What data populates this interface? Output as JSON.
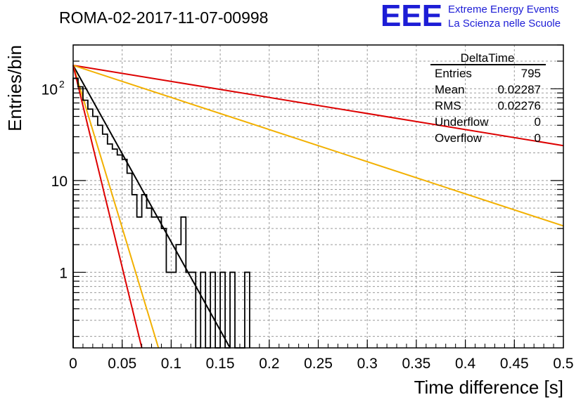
{
  "chart_data": {
    "type": "histogram",
    "title": "ROMA-02-2017-11-07-00998",
    "xlabel": "Time difference [s]",
    "ylabel": "Entries/bin",
    "xlim": [
      0,
      0.5
    ],
    "ylim": [
      0.15,
      300
    ],
    "y_scale": "log",
    "grid": true,
    "x_ticks": [
      "0",
      "0.05",
      "0.1",
      "0.15",
      "0.2",
      "0.25",
      "0.3",
      "0.35",
      "0.4",
      "0.45",
      "0.5"
    ],
    "y_ticks": [
      {
        "value": 1,
        "label": "1"
      },
      {
        "value": 10,
        "label": "10"
      },
      {
        "value": 100,
        "label": "10",
        "exp": "2"
      }
    ],
    "histogram": {
      "bin_width": 0.005,
      "values": [
        130,
        105,
        75,
        60,
        50,
        40,
        32,
        25,
        22,
        19,
        17,
        12,
        7,
        4,
        7,
        5,
        4,
        4,
        3,
        1,
        1,
        2,
        4,
        1,
        1,
        0,
        1,
        0,
        1,
        0,
        1,
        0,
        1,
        0,
        0,
        1
      ],
      "color": "#000000"
    },
    "fits": [
      {
        "type": "exponential",
        "color": "#000000",
        "x": [
          0,
          0.16
        ],
        "y": [
          180,
          0.15
        ]
      },
      {
        "type": "exponential",
        "color": "#dd0000",
        "x": [
          0,
          0.5
        ],
        "y": [
          180,
          24
        ]
      },
      {
        "type": "exponential",
        "color": "#f2b000",
        "x": [
          0,
          0.5
        ],
        "y": [
          180,
          3.2
        ]
      },
      {
        "type": "exponential",
        "color": "#f2b000",
        "x": [
          0,
          0.087
        ],
        "y": [
          180,
          0.15
        ]
      },
      {
        "type": "exponential",
        "color": "#dd0000",
        "x": [
          0,
          0.07
        ],
        "y": [
          180,
          0.15
        ]
      }
    ]
  },
  "stats_box": {
    "title": "DeltaTime",
    "rows": [
      {
        "label": "Entries",
        "value": "795"
      },
      {
        "label": "Mean",
        "value": "0.02287"
      },
      {
        "label": "RMS",
        "value": "0.02276"
      },
      {
        "label": "Underflow",
        "value": "0"
      },
      {
        "label": "Overflow",
        "value": "0"
      }
    ]
  },
  "logo": {
    "text": "EEE",
    "line1": "Extreme Energy Events",
    "line2": "La Scienza nelle Scuole",
    "color": "#1d1dd6"
  }
}
